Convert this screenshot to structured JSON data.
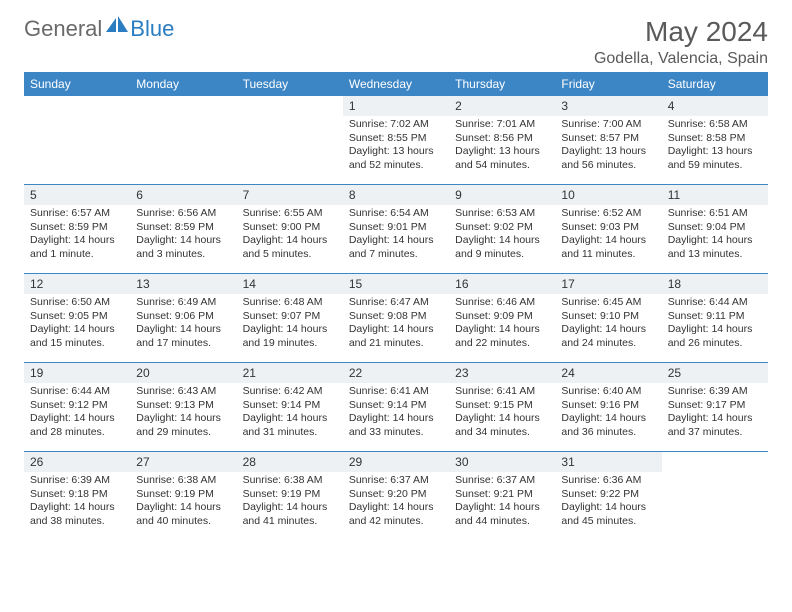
{
  "brand": {
    "word1": "General",
    "word2": "Blue",
    "logo_color": "#2a7dc0"
  },
  "title": "May 2024",
  "location": "Godella, Valencia, Spain",
  "colors": {
    "header_bg": "#3d86c6",
    "header_text": "#ffffff",
    "daynum_bg": "#edf1f4",
    "text": "#333333",
    "divider": "#3d86c6"
  },
  "days_of_week": [
    "Sunday",
    "Monday",
    "Tuesday",
    "Wednesday",
    "Thursday",
    "Friday",
    "Saturday"
  ],
  "weeks": [
    [
      null,
      null,
      null,
      {
        "n": "1",
        "sr": "7:02 AM",
        "ss": "8:55 PM",
        "dl": "13 hours and 52 minutes."
      },
      {
        "n": "2",
        "sr": "7:01 AM",
        "ss": "8:56 PM",
        "dl": "13 hours and 54 minutes."
      },
      {
        "n": "3",
        "sr": "7:00 AM",
        "ss": "8:57 PM",
        "dl": "13 hours and 56 minutes."
      },
      {
        "n": "4",
        "sr": "6:58 AM",
        "ss": "8:58 PM",
        "dl": "13 hours and 59 minutes."
      }
    ],
    [
      {
        "n": "5",
        "sr": "6:57 AM",
        "ss": "8:59 PM",
        "dl": "14 hours and 1 minute."
      },
      {
        "n": "6",
        "sr": "6:56 AM",
        "ss": "8:59 PM",
        "dl": "14 hours and 3 minutes."
      },
      {
        "n": "7",
        "sr": "6:55 AM",
        "ss": "9:00 PM",
        "dl": "14 hours and 5 minutes."
      },
      {
        "n": "8",
        "sr": "6:54 AM",
        "ss": "9:01 PM",
        "dl": "14 hours and 7 minutes."
      },
      {
        "n": "9",
        "sr": "6:53 AM",
        "ss": "9:02 PM",
        "dl": "14 hours and 9 minutes."
      },
      {
        "n": "10",
        "sr": "6:52 AM",
        "ss": "9:03 PM",
        "dl": "14 hours and 11 minutes."
      },
      {
        "n": "11",
        "sr": "6:51 AM",
        "ss": "9:04 PM",
        "dl": "14 hours and 13 minutes."
      }
    ],
    [
      {
        "n": "12",
        "sr": "6:50 AM",
        "ss": "9:05 PM",
        "dl": "14 hours and 15 minutes."
      },
      {
        "n": "13",
        "sr": "6:49 AM",
        "ss": "9:06 PM",
        "dl": "14 hours and 17 minutes."
      },
      {
        "n": "14",
        "sr": "6:48 AM",
        "ss": "9:07 PM",
        "dl": "14 hours and 19 minutes."
      },
      {
        "n": "15",
        "sr": "6:47 AM",
        "ss": "9:08 PM",
        "dl": "14 hours and 21 minutes."
      },
      {
        "n": "16",
        "sr": "6:46 AM",
        "ss": "9:09 PM",
        "dl": "14 hours and 22 minutes."
      },
      {
        "n": "17",
        "sr": "6:45 AM",
        "ss": "9:10 PM",
        "dl": "14 hours and 24 minutes."
      },
      {
        "n": "18",
        "sr": "6:44 AM",
        "ss": "9:11 PM",
        "dl": "14 hours and 26 minutes."
      }
    ],
    [
      {
        "n": "19",
        "sr": "6:44 AM",
        "ss": "9:12 PM",
        "dl": "14 hours and 28 minutes."
      },
      {
        "n": "20",
        "sr": "6:43 AM",
        "ss": "9:13 PM",
        "dl": "14 hours and 29 minutes."
      },
      {
        "n": "21",
        "sr": "6:42 AM",
        "ss": "9:14 PM",
        "dl": "14 hours and 31 minutes."
      },
      {
        "n": "22",
        "sr": "6:41 AM",
        "ss": "9:14 PM",
        "dl": "14 hours and 33 minutes."
      },
      {
        "n": "23",
        "sr": "6:41 AM",
        "ss": "9:15 PM",
        "dl": "14 hours and 34 minutes."
      },
      {
        "n": "24",
        "sr": "6:40 AM",
        "ss": "9:16 PM",
        "dl": "14 hours and 36 minutes."
      },
      {
        "n": "25",
        "sr": "6:39 AM",
        "ss": "9:17 PM",
        "dl": "14 hours and 37 minutes."
      }
    ],
    [
      {
        "n": "26",
        "sr": "6:39 AM",
        "ss": "9:18 PM",
        "dl": "14 hours and 38 minutes."
      },
      {
        "n": "27",
        "sr": "6:38 AM",
        "ss": "9:19 PM",
        "dl": "14 hours and 40 minutes."
      },
      {
        "n": "28",
        "sr": "6:38 AM",
        "ss": "9:19 PM",
        "dl": "14 hours and 41 minutes."
      },
      {
        "n": "29",
        "sr": "6:37 AM",
        "ss": "9:20 PM",
        "dl": "14 hours and 42 minutes."
      },
      {
        "n": "30",
        "sr": "6:37 AM",
        "ss": "9:21 PM",
        "dl": "14 hours and 44 minutes."
      },
      {
        "n": "31",
        "sr": "6:36 AM",
        "ss": "9:22 PM",
        "dl": "14 hours and 45 minutes."
      },
      null
    ]
  ],
  "labels": {
    "sunrise": "Sunrise:",
    "sunset": "Sunset:",
    "daylight": "Daylight:"
  }
}
